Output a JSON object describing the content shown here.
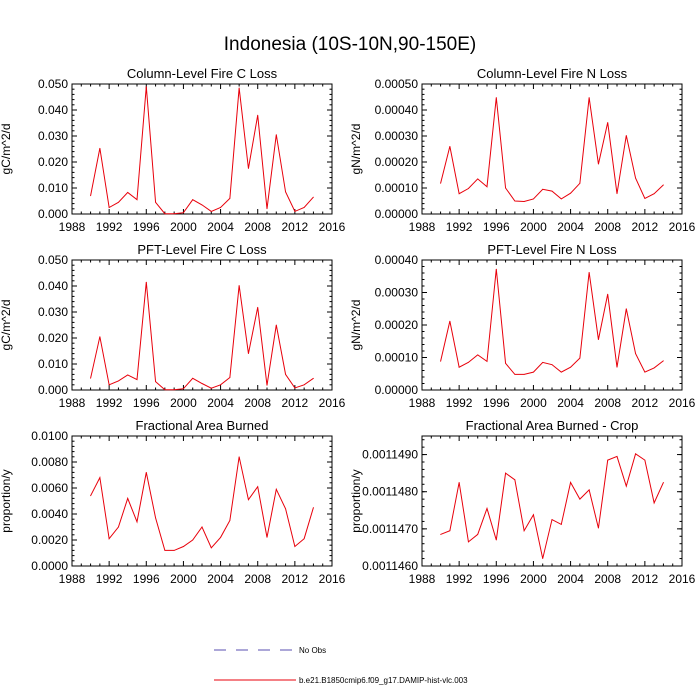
{
  "figure": {
    "title": "Indonesia (10S-10N,90-150E)",
    "legend": [
      {
        "label": "No Obs",
        "color": "#5a4fb0",
        "style": "dashed"
      },
      {
        "label": "b.e21.B1850cmip6.f09_g17.DAMIP-hist-vlc.003",
        "color": "#e8000b",
        "style": "solid"
      }
    ]
  },
  "chart_data": [
    {
      "type": "line",
      "title": "Column-Level Fire C Loss",
      "ylabel": "gC/m^2/d",
      "xlabel": "",
      "xlim": [
        1988,
        2016
      ],
      "ylim": [
        0,
        0.05
      ],
      "xticks": [
        "1988",
        "1992",
        "1996",
        "2000",
        "2004",
        "2008",
        "2012",
        "2016"
      ],
      "yticks": [
        "0.000",
        "0.010",
        "0.020",
        "0.030",
        "0.040",
        "0.050"
      ],
      "series": [
        {
          "name": "b.e21.B1850cmip6.f09_g17.DAMIP-hist-vlc.003",
          "color": "#e8000b",
          "x": [
            1990,
            1991,
            1992,
            1993,
            1994,
            1995,
            1996,
            1997,
            1998,
            1999,
            2000,
            2001,
            2002,
            2003,
            2004,
            2005,
            2006,
            2007,
            2008,
            2009,
            2010,
            2011,
            2012,
            2013,
            2014
          ],
          "values": [
            0.007,
            0.0253,
            0.0025,
            0.0045,
            0.0083,
            0.0055,
            0.049,
            0.0045,
            0.0001,
            0.0001,
            0.0005,
            0.0055,
            0.0035,
            0.001,
            0.0025,
            0.006,
            0.0485,
            0.0175,
            0.038,
            0.002,
            0.0305,
            0.0085,
            0.001,
            0.0025,
            0.0065
          ]
        }
      ]
    },
    {
      "type": "line",
      "title": "Column-Level Fire N Loss",
      "ylabel": "gN/m^2/d",
      "xlabel": "",
      "xlim": [
        1988,
        2016
      ],
      "ylim": [
        0,
        0.0005
      ],
      "xticks": [
        "1988",
        "1992",
        "1996",
        "2000",
        "2004",
        "2008",
        "2012",
        "2016"
      ],
      "yticks": [
        "0.00000",
        "0.00010",
        "0.00020",
        "0.00030",
        "0.00040",
        "0.00050"
      ],
      "series": [
        {
          "name": "b.e21.B1850cmip6.f09_g17.DAMIP-hist-vlc.003",
          "color": "#e8000b",
          "x": [
            1990,
            1991,
            1992,
            1993,
            1994,
            1995,
            1996,
            1997,
            1998,
            1999,
            2000,
            2001,
            2002,
            2003,
            2004,
            2005,
            2006,
            2007,
            2008,
            2009,
            2010,
            2011,
            2012,
            2013,
            2014
          ],
          "values": [
            0.000118,
            0.00026,
            7.8e-05,
            9.8e-05,
            0.000135,
            0.000105,
            0.000448,
            0.0001,
            5e-05,
            4.8e-05,
            5.8e-05,
            9.5e-05,
            8.8e-05,
            5.8e-05,
            8e-05,
            0.000118,
            0.000448,
            0.000192,
            0.000352,
            7.8e-05,
            0.000302,
            0.000138,
            6e-05,
            7.8e-05,
            0.000112
          ]
        }
      ]
    },
    {
      "type": "line",
      "title": "PFT-Level Fire C Loss",
      "ylabel": "gC/m^2/d",
      "xlabel": "",
      "xlim": [
        1988,
        2016
      ],
      "ylim": [
        0,
        0.05
      ],
      "xticks": [
        "1988",
        "1992",
        "1996",
        "2000",
        "2004",
        "2008",
        "2012",
        "2016"
      ],
      "yticks": [
        "0.000",
        "0.010",
        "0.020",
        "0.030",
        "0.040",
        "0.050"
      ],
      "series": [
        {
          "name": "b.e21.B1850cmip6.f09_g17.DAMIP-hist-vlc.003",
          "color": "#e8000b",
          "x": [
            1990,
            1991,
            1992,
            1993,
            1994,
            1995,
            1996,
            1997,
            1998,
            1999,
            2000,
            2001,
            2002,
            2003,
            2004,
            2005,
            2006,
            2007,
            2008,
            2009,
            2010,
            2011,
            2012,
            2013,
            2014
          ],
          "values": [
            0.0045,
            0.0205,
            0.002,
            0.0035,
            0.0058,
            0.004,
            0.0415,
            0.0032,
            0.0001,
            0.0001,
            0.0005,
            0.0045,
            0.0025,
            0.0007,
            0.002,
            0.0048,
            0.0402,
            0.014,
            0.0318,
            0.0018,
            0.025,
            0.006,
            0.0008,
            0.002,
            0.0045
          ]
        }
      ]
    },
    {
      "type": "line",
      "title": "PFT-Level Fire N Loss",
      "ylabel": "gN/m^2/d",
      "xlabel": "",
      "xlim": [
        1988,
        2016
      ],
      "ylim": [
        0,
        0.0004
      ],
      "xticks": [
        "1988",
        "1992",
        "1996",
        "2000",
        "2004",
        "2008",
        "2012",
        "2016"
      ],
      "yticks": [
        "0.00000",
        "0.00010",
        "0.00020",
        "0.00030",
        "0.00040"
      ],
      "series": [
        {
          "name": "b.e21.B1850cmip6.f09_g17.DAMIP-hist-vlc.003",
          "color": "#e8000b",
          "x": [
            1990,
            1991,
            1992,
            1993,
            1994,
            1995,
            1996,
            1997,
            1998,
            1999,
            2000,
            2001,
            2002,
            2003,
            2004,
            2005,
            2006,
            2007,
            2008,
            2009,
            2010,
            2011,
            2012,
            2013,
            2014
          ],
          "values": [
            8.8e-05,
            0.000212,
            7e-05,
            8.5e-05,
            0.000108,
            8.8e-05,
            0.000372,
            8.2e-05,
            4.8e-05,
            4.8e-05,
            5.5e-05,
            8.5e-05,
            7.8e-05,
            5.5e-05,
            7e-05,
            9.8e-05,
            0.000362,
            0.000155,
            0.000295,
            7e-05,
            0.00025,
            0.000112,
            5.5e-05,
            6.8e-05,
            9e-05
          ]
        }
      ]
    },
    {
      "type": "line",
      "title": "Fractional Area Burned",
      "ylabel": "proportion/y",
      "xlabel": "",
      "xlim": [
        1988,
        2016
      ],
      "ylim": [
        0,
        0.01
      ],
      "xticks": [
        "1988",
        "1992",
        "1996",
        "2000",
        "2004",
        "2008",
        "2012",
        "2016"
      ],
      "yticks": [
        "0.0000",
        "0.0020",
        "0.0040",
        "0.0060",
        "0.0080",
        "0.0100"
      ],
      "series": [
        {
          "name": "b.e21.B1850cmip6.f09_g17.DAMIP-hist-vlc.003",
          "color": "#e8000b",
          "x": [
            1990,
            1991,
            1992,
            1993,
            1994,
            1995,
            1996,
            1997,
            1998,
            1999,
            2000,
            2001,
            2002,
            2003,
            2004,
            2005,
            2006,
            2007,
            2008,
            2009,
            2010,
            2011,
            2012,
            2013,
            2014
          ],
          "values": [
            0.0054,
            0.0068,
            0.0021,
            0.003,
            0.0052,
            0.0034,
            0.0072,
            0.0037,
            0.0012,
            0.0012,
            0.0015,
            0.002,
            0.003,
            0.0014,
            0.0022,
            0.0035,
            0.0084,
            0.0051,
            0.0061,
            0.0022,
            0.0059,
            0.0044,
            0.0015,
            0.0021,
            0.0045
          ]
        }
      ]
    },
    {
      "type": "line",
      "title": "Fractional Area Burned - Crop",
      "ylabel": "proportion/y",
      "xlabel": "",
      "xlim": [
        1988,
        2016
      ],
      "ylim": [
        0.001146,
        0.0011495
      ],
      "yticks_values": [
        0.001146,
        0.001147,
        0.001148,
        0.001149
      ],
      "xticks": [
        "1988",
        "1992",
        "1996",
        "2000",
        "2004",
        "2008",
        "2012",
        "2016"
      ],
      "yticks": [
        "0.0011460",
        "0.0011470",
        "0.0011480",
        "0.0011490"
      ],
      "series": [
        {
          "name": "b.e21.B1850cmip6.f09_g17.DAMIP-hist-vlc.003",
          "color": "#e8000b",
          "x": [
            1990,
            1991,
            1992,
            1993,
            1994,
            1995,
            1996,
            1997,
            1998,
            1999,
            2000,
            2001,
            2002,
            2003,
            2004,
            2005,
            2006,
            2007,
            2008,
            2009,
            2010,
            2011,
            2012,
            2013,
            2014
          ],
          "values": [
            0.00114685,
            0.00114695,
            0.00114825,
            0.00114665,
            0.00114685,
            0.00114755,
            0.0011467,
            0.0011485,
            0.00114832,
            0.00114695,
            0.00114738,
            0.0011462,
            0.00114725,
            0.00114712,
            0.00114825,
            0.0011478,
            0.00114805,
            0.00114702,
            0.00114885,
            0.00114895,
            0.00114815,
            0.00114902,
            0.00114885,
            0.0011477,
            0.00114825
          ]
        }
      ]
    }
  ]
}
